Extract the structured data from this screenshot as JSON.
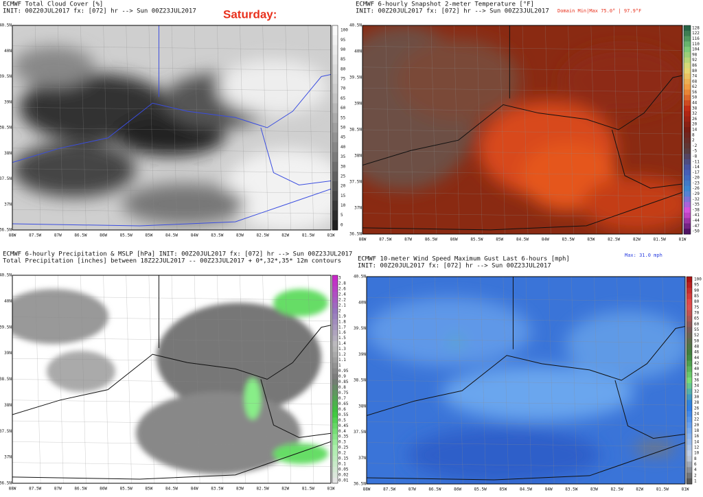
{
  "axes": {
    "lat": [
      "40.5N",
      "40N",
      "39.5N",
      "39N",
      "38.5N",
      "38N",
      "37.5N",
      "37N",
      "36.5N"
    ],
    "lon": [
      "88W",
      "87.5W",
      "87W",
      "86.5W",
      "86W",
      "85.5W",
      "85W",
      "84.5W",
      "84W",
      "83.5W",
      "83W",
      "82.5W",
      "82W",
      "81.5W",
      "81W"
    ]
  },
  "panels": [
    {
      "title": [
        "ECMWF Total Cloud Cover [%]",
        "INIT: 00Z20JUL2017 fx: [072] hr --> Sun 00Z23JUL2017"
      ],
      "note": "Saturday:",
      "colorbar": [
        "100",
        "95",
        "90",
        "85",
        "80",
        "75",
        "70",
        "65",
        "60",
        "55",
        "50",
        "45",
        "40",
        "35",
        "30",
        "25",
        "20",
        "15",
        "10",
        "5",
        "0"
      ]
    },
    {
      "title": [
        "ECMWF 6-hourly Snapshot 2-meter Temperature [°F]",
        "INIT: 00Z20JUL2017 fx: [072] hr --> Sun 00Z23JUL2017"
      ],
      "note": "Domain Min|Max 75.0° | 97.9°F",
      "colorbar": [
        "128",
        "122",
        "116",
        "110",
        "104",
        "98",
        "92",
        "86",
        "80",
        "74",
        "68",
        "62",
        "56",
        "50",
        "44",
        "38",
        "32",
        "26",
        "20",
        "14",
        "8",
        "2",
        "-2",
        "-5",
        "-8",
        "-11",
        "-14",
        "-17",
        "-20",
        "-23",
        "-26",
        "-29",
        "-32",
        "-35",
        "-38",
        "-41",
        "-44",
        "-47",
        "-50"
      ]
    },
    {
      "title": [
        "ECMWF 6-hourly Precipitation & MSLP [hPa] INIT: 00Z20JUL2017 fx: [072] hr --> Sun 00Z23JUL2017",
        "Total Precipitation [inches] between 18Z22JUL2017 -- 00Z23JUL2017 + 0*,32*,35* 12m contours"
      ],
      "colorbar": [
        "3",
        "2.8",
        "2.6",
        "2.4",
        "2.2",
        "2.1",
        "2",
        "1.9",
        "1.8",
        "1.7",
        "1.6",
        "1.5",
        "1.4",
        "1.3",
        "1.2",
        "1.1",
        "1",
        "0.95",
        "0.9",
        "0.85",
        "0.8",
        "0.75",
        "0.7",
        "0.65",
        "0.6",
        "0.55",
        "0.5",
        "0.45",
        "0.4",
        "0.35",
        "0.3",
        "0.25",
        "0.2",
        "0.15",
        "0.1",
        "0.05",
        "0.02",
        "0.01"
      ]
    },
    {
      "title": [
        "ECMWF 10-meter Wind Speed Maximum Gust Last 6-hours [mph]",
        "INIT: 00Z20JUL2017 fx: [072] hr --> Sun 00Z23JUL2017"
      ],
      "note": "Max: 31.0 mph",
      "colorbar": [
        "100",
        "95",
        "90",
        "85",
        "80",
        "75",
        "70",
        "65",
        "60",
        "55",
        "52",
        "50",
        "48",
        "46",
        "44",
        "42",
        "40",
        "38",
        "36",
        "34",
        "32",
        "30",
        "28",
        "26",
        "24",
        "22",
        "20",
        "18",
        "16",
        "14",
        "12",
        "10",
        "8",
        "6",
        "4",
        "2",
        "1"
      ]
    }
  ]
}
